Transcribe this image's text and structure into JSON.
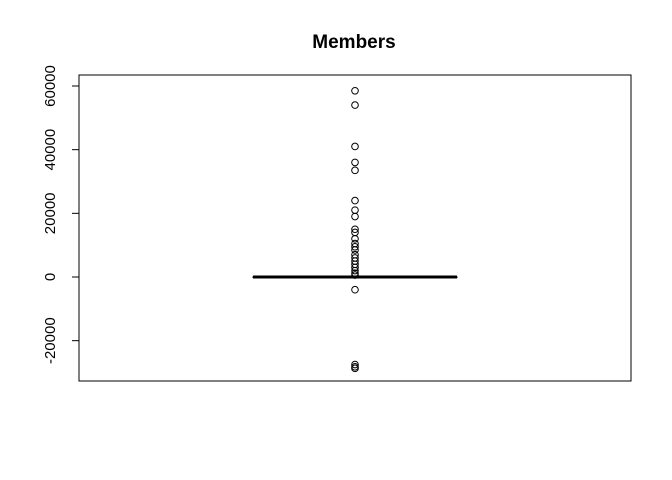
{
  "chart_data": {
    "type": "box",
    "title": "Members",
    "xlabel": "",
    "ylabel": "",
    "ylim": [
      -32000,
      64000
    ],
    "y_ticks": [
      -20000,
      0,
      20000,
      40000,
      60000
    ],
    "box": {
      "q1": 0,
      "median": 0,
      "q3": 0,
      "whisker_low": 0,
      "whisker_high": 0
    },
    "outliers": [
      58500,
      54000,
      41000,
      36000,
      33500,
      24000,
      21000,
      19000,
      15000,
      14000,
      12000,
      10500,
      9500,
      8500,
      7000,
      6000,
      5000,
      4000,
      3000,
      2000,
      1200,
      600,
      -4000,
      -27500,
      -28200,
      -28700
    ]
  }
}
